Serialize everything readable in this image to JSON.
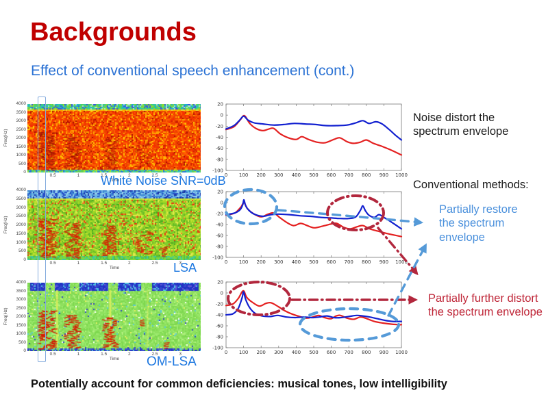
{
  "slide": {
    "title": "Backgrounds",
    "subtitle": "Effect of conventional speech enhancement (cont.)",
    "footer": "Potentially account for common deficiencies: musical tones, low intelligibility"
  },
  "notes": {
    "noise": "Noise distort the spectrum envelope",
    "conventional": "Conventional methods:",
    "restore": "Partially restore the spectrum envelope",
    "distort": "Partially further distort the spectrum envelope"
  },
  "colors": {
    "title_red": "#c00000",
    "subtitle_blue": "#2b72d4",
    "spectrogram_label_blue": "#1e78e0",
    "restore_text_blue": "#4a90dc",
    "distort_text_red": "#bf2638",
    "callout_blue_dash": "#559ad8",
    "callout_red_dashdot": "#b2273d",
    "envelope_blue": "#1220d0",
    "envelope_red": "#e42020"
  },
  "spectrograms": [
    {
      "label": "White Noise SNR=0dB",
      "style": "noisy",
      "xlabel": "Time",
      "ylabel": "Freq(Hz)",
      "yticks": [
        "4000",
        "3500",
        "3000",
        "2500",
        "2000",
        "1500",
        "1000",
        "500",
        "0"
      ],
      "xticks": [
        0.5,
        1,
        1.5,
        2,
        2.5,
        3
      ]
    },
    {
      "label": "LSA",
      "style": "lsa",
      "xlabel": "Time",
      "ylabel": "Freq(Hz)",
      "yticks": [
        "4000",
        "3500",
        "3000",
        "2500",
        "2000",
        "1500",
        "1000",
        "500",
        "0"
      ],
      "xticks": [
        0.5,
        1,
        1.5,
        2,
        2.5,
        3
      ]
    },
    {
      "label": "OM-LSA",
      "style": "omlsa",
      "xlabel": "Time",
      "ylabel": "Freq(Hz)",
      "yticks": [
        "4000",
        "3500",
        "3000",
        "2500",
        "2000",
        "1500",
        "1000",
        "500",
        "0"
      ],
      "xticks": [
        0.5,
        1,
        1.5,
        2,
        2.5,
        3
      ]
    }
  ],
  "chart_data": [
    {
      "type": "line",
      "xlim": [
        0,
        1000
      ],
      "ylim": [
        -100,
        20
      ],
      "xticks": [
        0,
        100,
        200,
        300,
        400,
        500,
        600,
        700,
        800,
        900,
        1000
      ],
      "yticks": [
        20,
        0,
        -20,
        -40,
        -60,
        -80,
        -100
      ],
      "grid": false,
      "legend": "none",
      "series": [
        {
          "name": "red envelope",
          "color": "#e42020",
          "points": [
            [
              0,
              -26
            ],
            [
              45,
              -21
            ],
            [
              80,
              -9
            ],
            [
              105,
              -1
            ],
            [
              135,
              -15
            ],
            [
              170,
              -24
            ],
            [
              210,
              -28
            ],
            [
              245,
              -25
            ],
            [
              272,
              -24
            ],
            [
              310,
              -34
            ],
            [
              355,
              -41
            ],
            [
              400,
              -44
            ],
            [
              432,
              -39
            ],
            [
              470,
              -44
            ],
            [
              520,
              -49
            ],
            [
              565,
              -50
            ],
            [
              615,
              -44
            ],
            [
              648,
              -41
            ],
            [
              690,
              -48
            ],
            [
              725,
              -51
            ],
            [
              765,
              -49
            ],
            [
              800,
              -45
            ],
            [
              840,
              -51
            ],
            [
              885,
              -56
            ],
            [
              940,
              -63
            ],
            [
              1000,
              -72
            ]
          ]
        },
        {
          "name": "blue envelope",
          "color": "#1220d0",
          "points": [
            [
              0,
              -25
            ],
            [
              45,
              -19
            ],
            [
              75,
              -10
            ],
            [
              100,
              -2
            ],
            [
              125,
              -9
            ],
            [
              160,
              -14
            ],
            [
              210,
              -16
            ],
            [
              270,
              -18
            ],
            [
              330,
              -17
            ],
            [
              390,
              -15
            ],
            [
              450,
              -16
            ],
            [
              510,
              -17
            ],
            [
              570,
              -19
            ],
            [
              630,
              -19
            ],
            [
              690,
              -18
            ],
            [
              740,
              -14
            ],
            [
              780,
              -10
            ],
            [
              815,
              -15
            ],
            [
              855,
              -12
            ],
            [
              890,
              -16
            ],
            [
              930,
              -26
            ],
            [
              965,
              -36
            ],
            [
              1000,
              -45
            ]
          ]
        }
      ]
    },
    {
      "type": "line",
      "xlim": [
        0,
        1000
      ],
      "ylim": [
        -100,
        20
      ],
      "xticks": [
        0,
        100,
        200,
        300,
        400,
        500,
        600,
        700,
        800,
        900,
        1000
      ],
      "yticks": [
        20,
        0,
        -20,
        -40,
        -60,
        -80,
        -100
      ],
      "grid": false,
      "legend": "none",
      "series": [
        {
          "name": "red envelope",
          "color": "#e42020",
          "points": [
            [
              0,
              -23
            ],
            [
              50,
              -19
            ],
            [
              85,
              -8
            ],
            [
              102,
              0
            ],
            [
              122,
              -11
            ],
            [
              155,
              -20
            ],
            [
              200,
              -26
            ],
            [
              240,
              -21
            ],
            [
              272,
              -19
            ],
            [
              305,
              -27
            ],
            [
              345,
              -36
            ],
            [
              385,
              -42
            ],
            [
              425,
              -38
            ],
            [
              455,
              -41
            ],
            [
              500,
              -46
            ],
            [
              550,
              -43
            ],
            [
              600,
              -39
            ],
            [
              632,
              -38
            ],
            [
              670,
              -45
            ],
            [
              708,
              -48
            ],
            [
              748,
              -44
            ],
            [
              780,
              -42
            ],
            [
              820,
              -48
            ],
            [
              865,
              -52
            ],
            [
              925,
              -57
            ],
            [
              1000,
              -62
            ]
          ]
        },
        {
          "name": "blue envelope",
          "color": "#1220d0",
          "points": [
            [
              0,
              -22
            ],
            [
              50,
              -19
            ],
            [
              80,
              -13
            ],
            [
              95,
              -4
            ],
            [
              102,
              5
            ],
            [
              112,
              -6
            ],
            [
              130,
              -14
            ],
            [
              160,
              -21
            ],
            [
              210,
              -25
            ],
            [
              255,
              -22
            ],
            [
              300,
              -21
            ],
            [
              360,
              -22
            ],
            [
              420,
              -24
            ],
            [
              480,
              -25
            ],
            [
              540,
              -27
            ],
            [
              600,
              -28
            ],
            [
              650,
              -29
            ],
            [
              700,
              -29
            ],
            [
              740,
              -26
            ],
            [
              768,
              -13
            ],
            [
              780,
              -6
            ],
            [
              795,
              -15
            ],
            [
              815,
              -23
            ],
            [
              845,
              -27
            ],
            [
              872,
              -22
            ],
            [
              900,
              -27
            ],
            [
              945,
              -36
            ],
            [
              1000,
              -48
            ]
          ]
        }
      ]
    },
    {
      "type": "line",
      "xlim": [
        0,
        1000
      ],
      "ylim": [
        -100,
        20
      ],
      "xticks": [
        0,
        100,
        200,
        300,
        400,
        500,
        600,
        700,
        800,
        900,
        1000
      ],
      "yticks": [
        20,
        0,
        -20,
        -40,
        -60,
        -80,
        -100
      ],
      "grid": false,
      "legend": "none",
      "series": [
        {
          "name": "red envelope",
          "color": "#e42020",
          "points": [
            [
              0,
              -23
            ],
            [
              40,
              -20
            ],
            [
              70,
              -10
            ],
            [
              98,
              4
            ],
            [
              118,
              -8
            ],
            [
              150,
              -17
            ],
            [
              190,
              -24
            ],
            [
              228,
              -19
            ],
            [
              258,
              -18
            ],
            [
              298,
              -25
            ],
            [
              338,
              -33
            ],
            [
              380,
              -39
            ],
            [
              420,
              -43
            ],
            [
              458,
              -46
            ],
            [
              495,
              -44
            ],
            [
              528,
              -41
            ],
            [
              562,
              -45
            ],
            [
              598,
              -47
            ],
            [
              628,
              -42
            ],
            [
              652,
              -41
            ],
            [
              690,
              -46
            ],
            [
              728,
              -48
            ],
            [
              765,
              -44
            ],
            [
              795,
              -46
            ],
            [
              845,
              -52
            ],
            [
              895,
              -55
            ],
            [
              945,
              -57
            ],
            [
              1000,
              -58
            ]
          ]
        },
        {
          "name": "blue envelope",
          "color": "#1220d0",
          "points": [
            [
              0,
              -40
            ],
            [
              40,
              -38
            ],
            [
              70,
              -28
            ],
            [
              92,
              -8
            ],
            [
              100,
              2
            ],
            [
              112,
              -12
            ],
            [
              135,
              -27
            ],
            [
              165,
              -37
            ],
            [
              205,
              -42
            ],
            [
              250,
              -43
            ],
            [
              295,
              -41
            ],
            [
              345,
              -44
            ],
            [
              395,
              -45
            ],
            [
              445,
              -44
            ],
            [
              490,
              -45
            ],
            [
              530,
              -44
            ],
            [
              575,
              -42
            ],
            [
              615,
              -45
            ],
            [
              655,
              -45
            ],
            [
              700,
              -43
            ],
            [
              745,
              -41
            ],
            [
              780,
              -42
            ],
            [
              820,
              -44
            ],
            [
              862,
              -47
            ],
            [
              905,
              -50
            ],
            [
              950,
              -52
            ],
            [
              1000,
              -52
            ]
          ]
        }
      ]
    }
  ]
}
